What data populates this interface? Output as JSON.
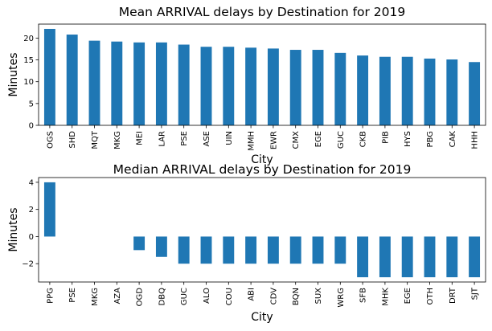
{
  "chart_data": [
    {
      "type": "bar",
      "title": "Mean ARRIVAL delays by Destination for 2019",
      "xlabel": "City",
      "ylabel": "Minutes",
      "categories": [
        "OGS",
        "SHD",
        "MQT",
        "MKG",
        "MEI",
        "LAR",
        "PSE",
        "ASE",
        "UIN",
        "MMH",
        "EWR",
        "CMX",
        "EGE",
        "GUC",
        "CKB",
        "PIB",
        "HYS",
        "PBG",
        "CAK",
        "HHH"
      ],
      "values": [
        22.1,
        20.8,
        19.4,
        19.2,
        19.0,
        19.0,
        18.5,
        18.0,
        18.0,
        17.8,
        17.6,
        17.3,
        17.3,
        16.6,
        16.0,
        15.7,
        15.7,
        15.3,
        15.1,
        14.5
      ],
      "ylim": [
        0,
        23.2
      ],
      "yticks": [
        0,
        5,
        10,
        15,
        20
      ],
      "grid": false,
      "color": "#1f77b4"
    },
    {
      "type": "bar",
      "title": "Median ARRIVAL delays by Destination for 2019",
      "xlabel": "City",
      "ylabel": "Minutes",
      "categories": [
        "PPG",
        "PSE",
        "MKG",
        "AZA",
        "OGD",
        "DBQ",
        "GUC",
        "ALO",
        "COU",
        "ABI",
        "CDV",
        "BQN",
        "SUX",
        "WRG",
        "SFB",
        "MHK",
        "EGE",
        "OTH",
        "DRT",
        "SJT"
      ],
      "values": [
        4,
        0,
        0,
        0,
        -1,
        -1.5,
        -2,
        -2,
        -2,
        -2,
        -2,
        -2,
        -2,
        -2,
        -3,
        -3,
        -3,
        -3,
        -3,
        -3
      ],
      "ylim": [
        -3.35,
        4.35
      ],
      "yticks": [
        -2,
        0,
        2,
        4
      ],
      "grid": false,
      "color": "#1f77b4"
    }
  ]
}
